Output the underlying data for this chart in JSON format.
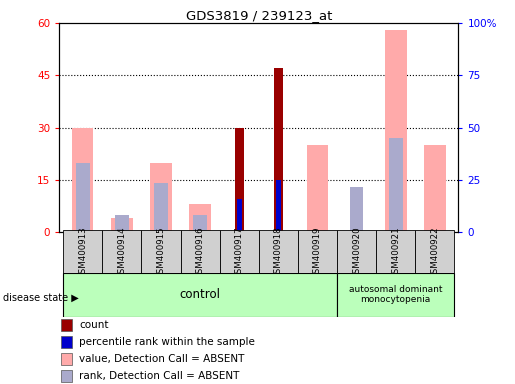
{
  "title": "GDS3819 / 239123_at",
  "samples": [
    "GSM400913",
    "GSM400914",
    "GSM400915",
    "GSM400916",
    "GSM400917",
    "GSM400918",
    "GSM400919",
    "GSM400920",
    "GSM400921",
    "GSM400922"
  ],
  "pink_vals": [
    30,
    4,
    20,
    8,
    0,
    0,
    25,
    0,
    58,
    25
  ],
  "blue_vals": [
    20,
    5,
    14,
    5,
    0,
    0,
    0,
    13,
    27,
    0
  ],
  "count_vals": [
    0,
    0,
    0,
    0,
    30,
    47,
    0,
    0,
    0,
    0
  ],
  "rank_vals": [
    0,
    0,
    0,
    0,
    16,
    25,
    0,
    0,
    0,
    0
  ],
  "ylim_left": [
    0,
    60
  ],
  "ylim_right": [
    0,
    100
  ],
  "yticks_left": [
    0,
    15,
    30,
    45,
    60
  ],
  "yticks_right": [
    0,
    25,
    50,
    75,
    100
  ],
  "color_count": "#990000",
  "color_rank": "#0000cc",
  "color_pink": "#ffaaaa",
  "color_blue": "#aaaacc",
  "dotted_yticks": [
    15,
    30,
    45
  ],
  "n_control": 7,
  "control_label": "control",
  "disease_label": "autosomal dominant\nmonocytopenia",
  "disease_state_label": "disease state",
  "legend_colors": [
    "#990000",
    "#0000cc",
    "#ffaaaa",
    "#aaaacc"
  ],
  "legend_labels": [
    "count",
    "percentile rank within the sample",
    "value, Detection Call = ABSENT",
    "rank, Detection Call = ABSENT"
  ]
}
